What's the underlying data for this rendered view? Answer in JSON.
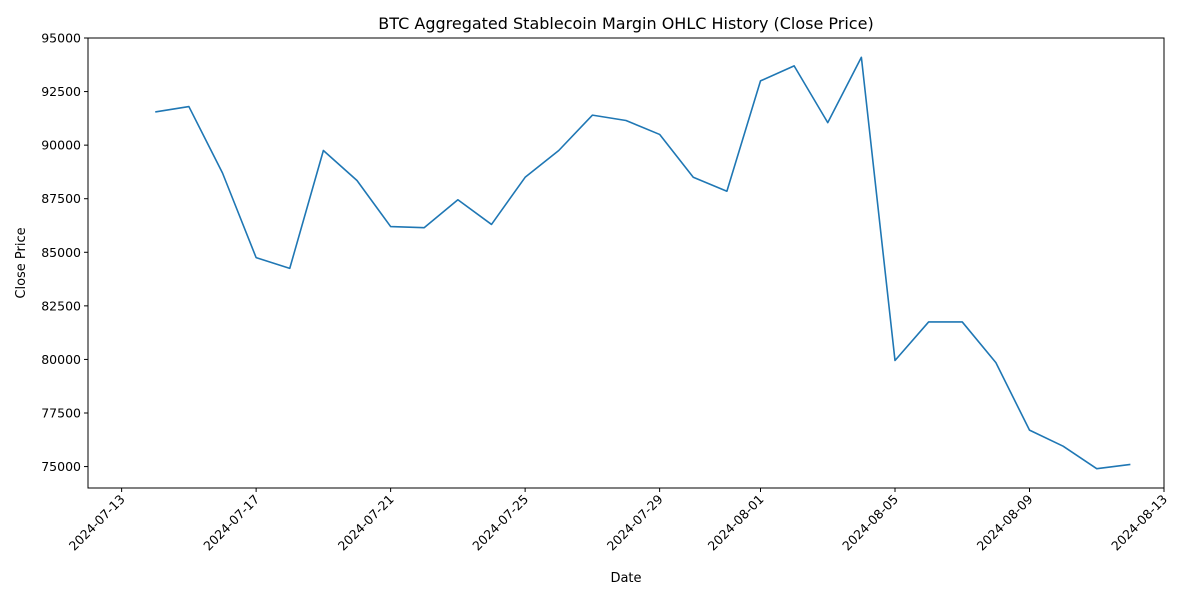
{
  "chart_data": {
    "type": "line",
    "title": "BTC Aggregated Stablecoin Margin OHLC History (Close Price)",
    "xlabel": "Date",
    "ylabel": "Close Price",
    "xlim": [
      "2024-07-12",
      "2024-08-13"
    ],
    "ylim": [
      74000,
      95000
    ],
    "y_ticks": [
      75000,
      77500,
      80000,
      82500,
      85000,
      87500,
      90000,
      92500,
      95000
    ],
    "x_ticks": [
      "2024-07-13",
      "2024-07-17",
      "2024-07-21",
      "2024-07-25",
      "2024-07-29",
      "2024-08-01",
      "2024-08-05",
      "2024-08-09",
      "2024-08-13"
    ],
    "grid": false,
    "legend": "none",
    "line_color": "#1f77b4",
    "series": [
      {
        "x": [
          "2024-07-14",
          "2024-07-15",
          "2024-07-16",
          "2024-07-17",
          "2024-07-18",
          "2024-07-19",
          "2024-07-20",
          "2024-07-21",
          "2024-07-22",
          "2024-07-23",
          "2024-07-24",
          "2024-07-25",
          "2024-07-26",
          "2024-07-27",
          "2024-07-28",
          "2024-07-29",
          "2024-07-30",
          "2024-07-31",
          "2024-08-01",
          "2024-08-02",
          "2024-08-03",
          "2024-08-04",
          "2024-08-05",
          "2024-08-06",
          "2024-08-07",
          "2024-08-08",
          "2024-08-09",
          "2024-08-10",
          "2024-08-11",
          "2024-08-12"
        ],
        "values": [
          91550,
          91800,
          88700,
          84750,
          84250,
          89750,
          88350,
          86200,
          86150,
          87450,
          86300,
          88500,
          89750,
          91400,
          91150,
          90500,
          88500,
          87850,
          93000,
          93700,
          91050,
          94100,
          79950,
          81750,
          81750,
          79850,
          76700,
          75950,
          74900,
          75100
        ]
      }
    ]
  }
}
